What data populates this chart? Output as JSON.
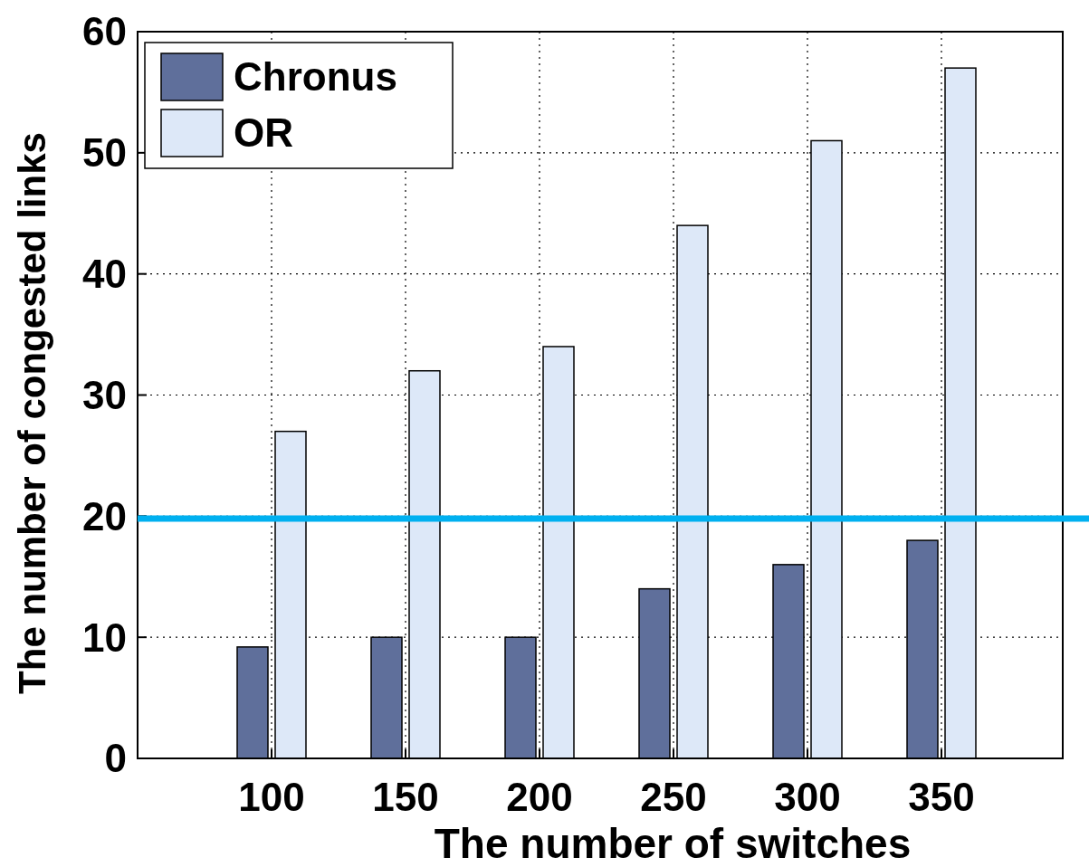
{
  "chart_data": {
    "type": "bar",
    "xlabel": "The number of switches",
    "ylabel": "The number of congested links",
    "categories": [
      "100",
      "150",
      "200",
      "250",
      "300",
      "350"
    ],
    "series": [
      {
        "name": "Chronus",
        "color": "#5f6f9b",
        "values": [
          9.2,
          10,
          10,
          14,
          16,
          18
        ]
      },
      {
        "name": "OR",
        "color": "#dde8f8",
        "values": [
          27,
          32,
          34,
          44,
          51,
          57
        ]
      }
    ],
    "ylim": [
      0,
      60
    ],
    "yticks": [
      0,
      10,
      20,
      30,
      40,
      50,
      60
    ],
    "grid": true,
    "legend": "top left",
    "ref_lines": [
      {
        "axis": "y",
        "value": 19.8,
        "color": "#00b0f0"
      }
    ]
  }
}
